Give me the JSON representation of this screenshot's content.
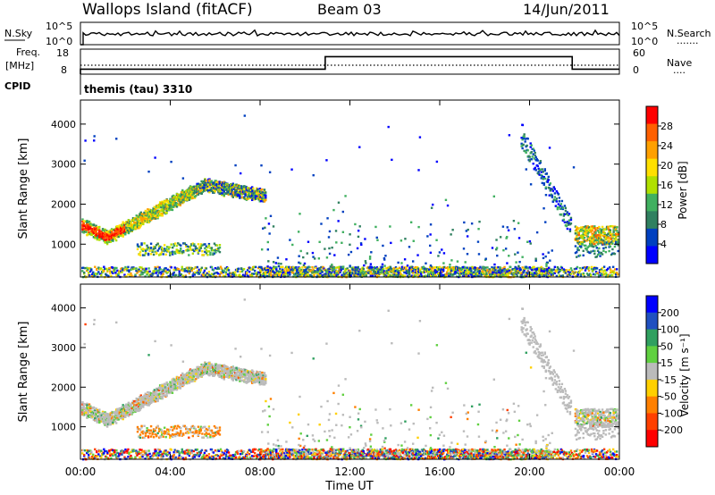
{
  "header": {
    "station": "Wallops Island (fitACF)",
    "beam": "Beam 03",
    "date": "14/Jun/2011"
  },
  "top_panels": {
    "nsky": {
      "label": "N.Sky",
      "ticks": [
        "10^5",
        "10^0"
      ],
      "right_ticks": [
        "10^5",
        "10^0"
      ],
      "right_label": "N.Search",
      "right_marker": "......."
    },
    "freq": {
      "label_line1": "Freq.",
      "label_line2": "[MHz]",
      "ticks": [
        "18",
        "8"
      ],
      "right_ticks": [
        "60",
        "0"
      ],
      "right_label": "Nave",
      "right_marker": "...."
    },
    "cpid": {
      "label": "CPID",
      "program": "themis (tau) 3310"
    }
  },
  "time_axis": {
    "ticks": [
      "00:00",
      "04:00",
      "08:00",
      "12:00",
      "16:00",
      "20:00",
      "00:00"
    ],
    "label": "Time UT"
  },
  "chart_data": [
    {
      "type": "line",
      "id": "freq_trace",
      "ylabel": "Freq. [MHz]",
      "ylim": [
        8,
        18
      ],
      "x_hours": [
        0,
        10.9,
        10.9,
        21.9,
        21.9,
        24
      ],
      "values_mhz": [
        10,
        10,
        15,
        15,
        10,
        10
      ]
    },
    {
      "type": "heatmap",
      "id": "power",
      "ylabel": "Slant Range [km]",
      "yticks": [
        1000,
        2000,
        3000,
        4000
      ],
      "ylim": [
        180,
        4600
      ],
      "colorbar": {
        "label": "Power [dB]",
        "ticks": [
          "28",
          "24",
          "20",
          "16",
          "12",
          "8",
          "4"
        ],
        "colors": [
          "#ff0000",
          "#ff6000",
          "#ffa000",
          "#ffe000",
          "#b0e000",
          "#40b060",
          "#308060",
          "#0040c0",
          "#0000ff"
        ]
      }
    },
    {
      "type": "heatmap",
      "id": "velocity",
      "ylabel": "Slant Range [km]",
      "yticks": [
        1000,
        2000,
        3000,
        4000
      ],
      "ylim": [
        180,
        4600
      ],
      "colorbar": {
        "label": "Velocity [m s⁻¹]",
        "ticks": [
          "200",
          "100",
          "50",
          "15",
          "-15",
          "-50",
          "-100",
          "-200"
        ],
        "colors": [
          "#0000ff",
          "#2050c0",
          "#30a060",
          "#60d040",
          "#bbbbbb",
          "#ffd000",
          "#ff8000",
          "#ff4000",
          "#ff0000"
        ]
      }
    }
  ]
}
